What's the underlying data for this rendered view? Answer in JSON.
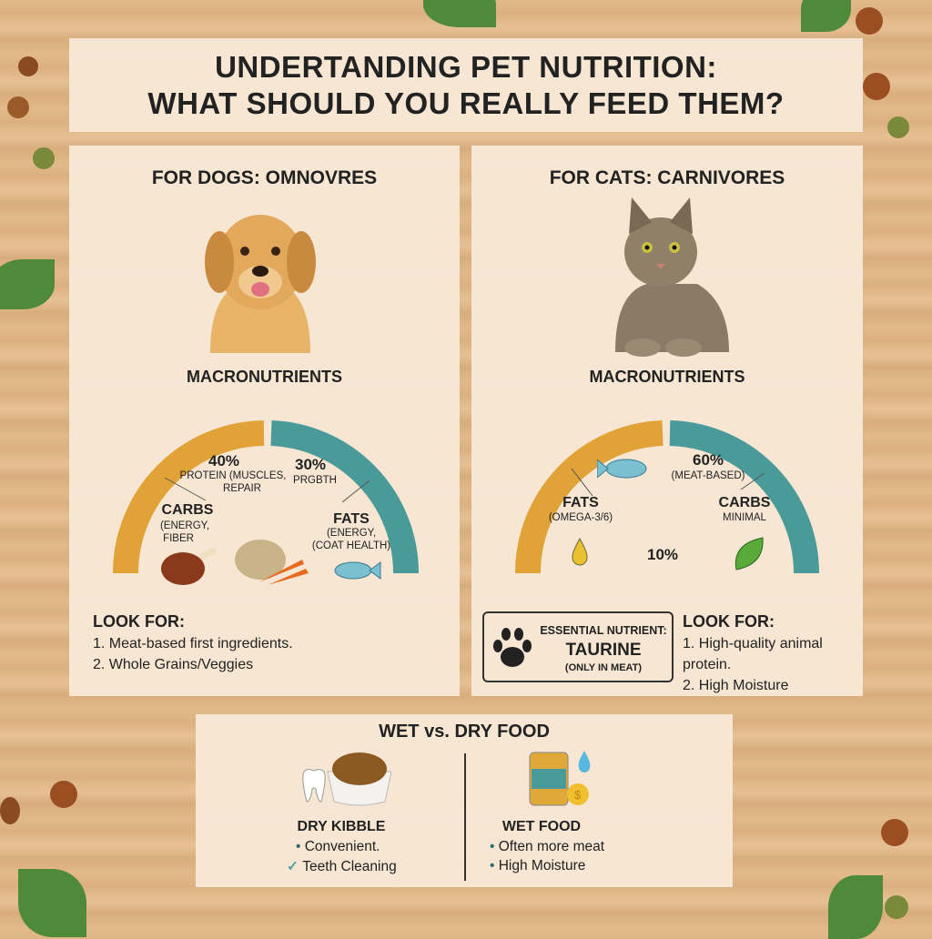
{
  "title": {
    "line1": "UNDERTANDING PET NUTRITION:",
    "line2": "WHAT SHOULD YOU REALLY FEED THEM?"
  },
  "dogs": {
    "heading": "FOR DOGS: OMNOVRES",
    "macro_title": "MACRONUTRIENTS",
    "protein_pct": "40%",
    "protein_desc1": "PROTEIN (MUSCLES,",
    "protein_desc2": "REPAIR",
    "other_pct": "30%",
    "other_desc": "PRGBTH",
    "carbs_label": "CARBS",
    "carbs_desc1": "(ENERGY,",
    "carbs_desc2": "FIBER",
    "fats_label": "FATS",
    "fats_desc1": "(ENERGY,",
    "fats_desc2": "(COAT HEALTH)",
    "look_for_title": "LOOK FOR:",
    "look_for": [
      "1. Meat-based first ingredients.",
      "2. Whole Grains/Veggies"
    ]
  },
  "cats": {
    "heading": "FOR CATS: CARNIVORES",
    "macro_title": "MACRONUTRIENTS",
    "protein_pct": "60%",
    "protein_desc": "(MEAT-BASED)",
    "fats_label": "FATS",
    "fats_desc": "(OMEGA-3/6)",
    "fats_pct": "10%",
    "carbs_label": "CARBS",
    "carbs_desc": "MINIMAL",
    "essential_title": "ESSENTIAL NUTRIENT:",
    "essential_name": "TAURINE",
    "essential_note": "(ONLY IN MEAT)",
    "look_for_title": "LOOK FOR:",
    "look_for": [
      "1. High-quality animal protein.",
      "2. High Moisture"
    ]
  },
  "food": {
    "heading": "WET vs. DRY FOOD",
    "dry": {
      "title": "DRY KIBBLE",
      "points": [
        "Convenient.",
        "Teeth Cleaning"
      ]
    },
    "wet": {
      "title": "WET FOOD",
      "points": [
        "Often more meat",
        "High Moisture"
      ]
    }
  },
  "colors": {
    "orange": "#e1a338",
    "teal": "#4a9a9a",
    "panel": "#f8ead8"
  }
}
